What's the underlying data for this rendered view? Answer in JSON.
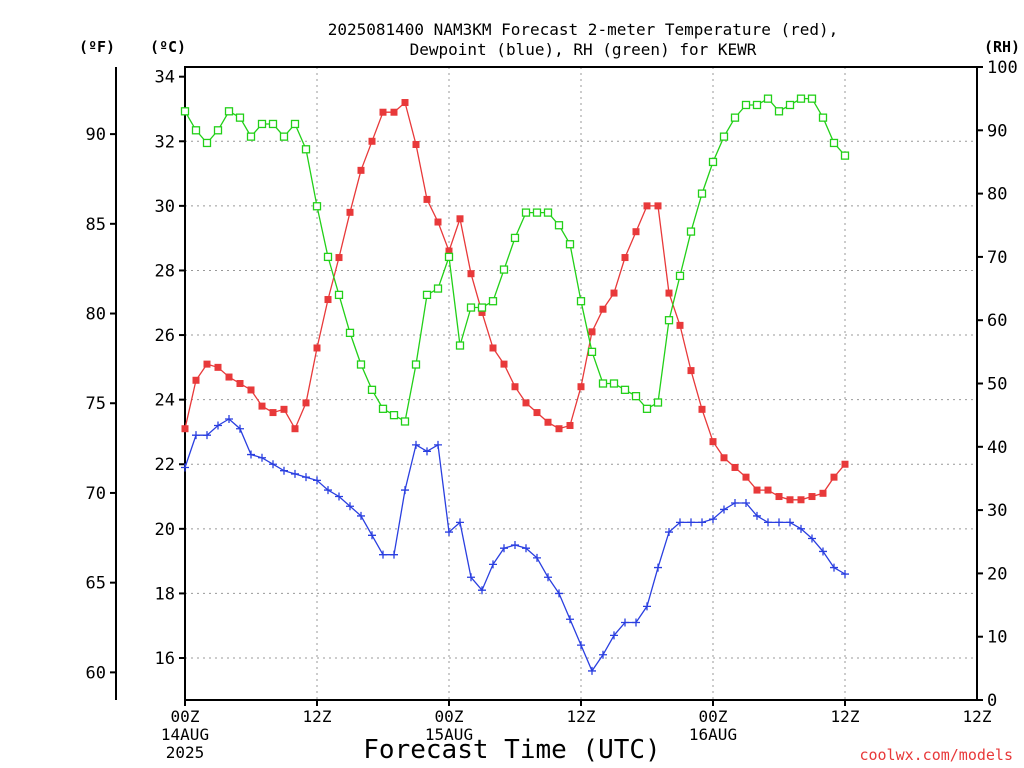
{
  "chart_data": {
    "type": "line",
    "title_line1": "2025081400 NAM3KM Forecast 2-meter Temperature (red),",
    "title_line2": "Dewpoint (blue), RH (green) for KEWR",
    "left_unit_f": "(ºF)",
    "left_unit_c": "(ºC)",
    "right_unit": "(RH)",
    "xlabel": "Forecast Time (UTC)",
    "credit": "coolwx.com/models",
    "x_range_hours": [
      0,
      72
    ],
    "celsius_range": [
      14.7,
      34.3
    ],
    "celsius_ticks": [
      16,
      18,
      20,
      22,
      24,
      26,
      28,
      30,
      32,
      34
    ],
    "fahrenheit_ticks": [
      60,
      65,
      70,
      75,
      80,
      85,
      90
    ],
    "rh_range": [
      0,
      100
    ],
    "rh_ticks": [
      0,
      10,
      20,
      30,
      40,
      50,
      60,
      70,
      80,
      90,
      100
    ],
    "x_ticks": [
      {
        "hour": 0,
        "lines": [
          "00Z",
          "14AUG",
          "2025"
        ]
      },
      {
        "hour": 12,
        "lines": [
          "12Z"
        ]
      },
      {
        "hour": 24,
        "lines": [
          "00Z",
          "15AUG"
        ]
      },
      {
        "hour": 36,
        "lines": [
          "12Z"
        ]
      },
      {
        "hour": 48,
        "lines": [
          "00Z",
          "16AUG"
        ]
      },
      {
        "hour": 60,
        "lines": [
          "12Z"
        ]
      }
    ],
    "grid": true,
    "colors": {
      "temperature": "#e8393a",
      "dewpoint": "#2a3fe0",
      "rh": "#22d018",
      "grid": "#999999"
    },
    "x_hours": [
      0,
      1,
      2,
      3,
      4,
      5,
      6,
      7,
      8,
      9,
      10,
      11,
      12,
      13,
      14,
      15,
      16,
      17,
      18,
      19,
      20,
      21,
      22,
      23,
      24,
      25,
      26,
      27,
      28,
      29,
      30,
      31,
      32,
      33,
      34,
      35,
      36,
      37,
      38,
      39,
      40,
      41,
      42,
      43,
      44,
      45,
      46,
      47,
      48,
      49,
      50,
      51,
      52,
      53,
      54,
      55,
      56,
      57,
      58,
      59,
      60
    ],
    "series": [
      {
        "key": "temperature",
        "unit": "C",
        "values": [
          23.1,
          24.6,
          25.1,
          25.0,
          24.7,
          24.5,
          24.3,
          23.8,
          23.6,
          23.7,
          23.1,
          23.9,
          25.6,
          27.1,
          28.4,
          29.8,
          31.1,
          32.0,
          32.9,
          32.9,
          33.2,
          31.9,
          30.2,
          29.5,
          28.6,
          29.6,
          27.9,
          26.7,
          25.6,
          25.1,
          24.4,
          23.9,
          23.6,
          23.3,
          23.1,
          23.2,
          24.4,
          26.1,
          26.8,
          27.3,
          28.4,
          29.2,
          30.0,
          30.0,
          27.3,
          26.3,
          24.9,
          23.7,
          22.7,
          22.2,
          21.9,
          21.6,
          21.2,
          21.2,
          21.0,
          20.9,
          20.9,
          21.0,
          21.1,
          21.6,
          22.0
        ]
      },
      {
        "key": "dewpoint",
        "unit": "C",
        "values": [
          21.9,
          22.9,
          22.9,
          23.2,
          23.4,
          23.1,
          22.3,
          22.2,
          22.0,
          21.8,
          21.7,
          21.6,
          21.5,
          21.2,
          21.0,
          20.7,
          20.4,
          19.8,
          19.2,
          19.2,
          21.2,
          22.6,
          22.4,
          22.6,
          19.9,
          20.2,
          18.5,
          18.1,
          18.9,
          19.4,
          19.5,
          19.4,
          19.1,
          18.5,
          18.0,
          17.2,
          16.4,
          15.6,
          16.1,
          16.7,
          17.1,
          17.1,
          17.6,
          18.8,
          19.9,
          20.2,
          20.2,
          20.2,
          20.3,
          20.6,
          20.8,
          20.8,
          20.4,
          20.2,
          20.2,
          20.2,
          20.0,
          19.7,
          19.3,
          18.8,
          18.6
        ]
      },
      {
        "key": "rh",
        "unit": "%",
        "values": [
          93,
          90,
          88,
          90,
          93,
          92,
          89,
          91,
          91,
          89,
          91,
          87,
          78,
          70,
          64,
          58,
          53,
          49,
          46,
          45,
          44,
          53,
          64,
          65,
          70,
          56,
          62,
          62,
          63,
          68,
          73,
          77,
          77,
          77,
          75,
          72,
          63,
          55,
          50,
          50,
          49,
          48,
          46,
          47,
          60,
          67,
          74,
          80,
          85,
          89,
          92,
          94,
          94,
          95,
          93,
          94,
          95,
          95,
          92,
          88,
          86
        ]
      }
    ]
  }
}
